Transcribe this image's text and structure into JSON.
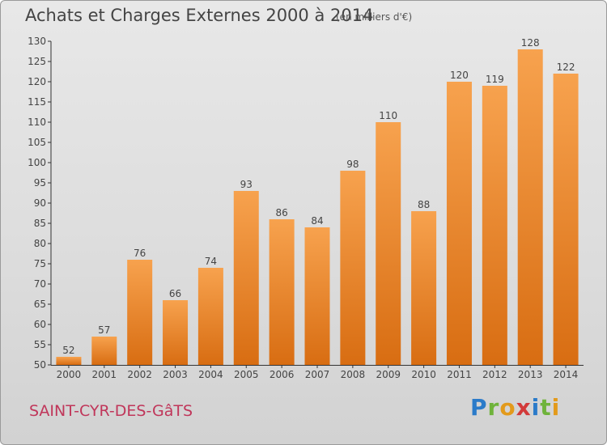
{
  "header": {
    "title": "Achats et Charges Externes 2000 à 2014",
    "subtitle": "(en milliers d'€)"
  },
  "footer": {
    "city": "SAINT-CYR-DES-GâTS",
    "logo_letters": [
      "P",
      "r",
      "o",
      "x",
      "i",
      "t",
      "i"
    ],
    "logo_colors": [
      "#2b7bc9",
      "#6fb33b",
      "#e39a1b",
      "#d23a3a",
      "#2b7bc9",
      "#6fb33b",
      "#e39a1b"
    ]
  },
  "chart_data": {
    "type": "bar",
    "categories": [
      "2000",
      "2001",
      "2002",
      "2003",
      "2004",
      "2005",
      "2006",
      "2007",
      "2008",
      "2009",
      "2010",
      "2011",
      "2012",
      "2013",
      "2014"
    ],
    "values": [
      52,
      57,
      76,
      66,
      74,
      93,
      86,
      84,
      98,
      110,
      88,
      120,
      119,
      128,
      122
    ],
    "ylim": [
      50,
      130
    ],
    "yticks": [
      50,
      55,
      60,
      65,
      70,
      75,
      80,
      85,
      90,
      95,
      100,
      105,
      110,
      115,
      120,
      125,
      130
    ],
    "title": "Achats et Charges Externes 2000 à 2014",
    "xlabel": "",
    "ylabel": "",
    "grid": false,
    "bar_color_top": "#f7a24e",
    "bar_color_bottom": "#d86d12"
  }
}
